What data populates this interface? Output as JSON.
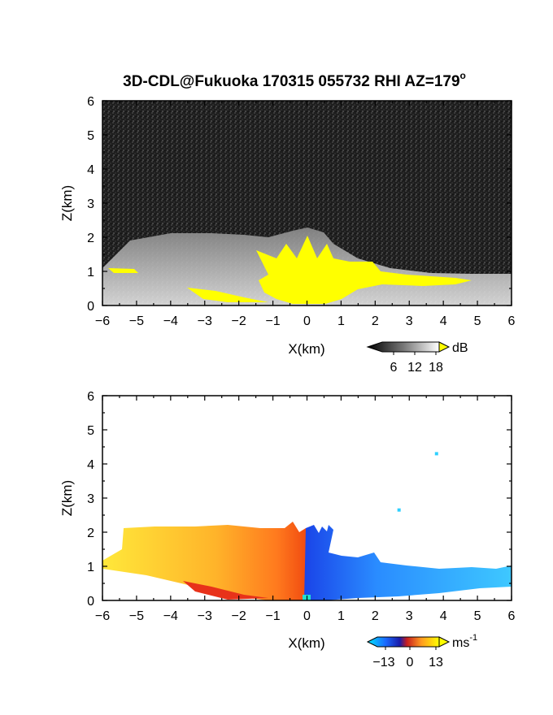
{
  "chart_data": [
    {
      "type": "heatmap",
      "title": "3D-CDL@Fukuoka 170315 055732 RHI AZ=179",
      "title_superscript": "o",
      "xlabel": "X(km)",
      "ylabel": "Z(km)",
      "xlim": [
        -6,
        6
      ],
      "ylim": [
        0,
        6
      ],
      "xticks": [
        "-6",
        "-5",
        "-4",
        "-3",
        "-2",
        "-1",
        "0",
        "1",
        "2",
        "3",
        "4",
        "5",
        "6"
      ],
      "yticks": [
        "0",
        "1",
        "2",
        "3",
        "4",
        "5",
        "6"
      ],
      "colorbar": {
        "unit": "dB",
        "ticks": [
          "6",
          "12",
          "18"
        ],
        "range": [
          0,
          20
        ],
        "colormap": "grayscale-to-white, yellow overflow",
        "overflow_color": "#ffff00"
      },
      "regions": [
        {
          "desc": "aerosol echo fan",
          "z_top_km_at_x": [
            [
              -6,
              1.1
            ],
            [
              -5,
              1.9
            ],
            [
              -3,
              2.1
            ],
            [
              -1,
              2.0
            ],
            [
              0,
              2.2
            ],
            [
              1,
              1.5
            ],
            [
              3,
              0.9
            ],
            [
              6,
              0.9
            ]
          ]
        },
        {
          "desc": "strong echo (>18 dB)",
          "x_range": [
            -1.5,
            2.2
          ],
          "z_range": [
            0,
            1.65
          ]
        }
      ]
    },
    {
      "type": "heatmap",
      "title": "",
      "xlabel": "X(km)",
      "ylabel": "Z(km)",
      "xlim": [
        -6,
        6
      ],
      "ylim": [
        0,
        6
      ],
      "xticks": [
        "-6",
        "-5",
        "-4",
        "-3",
        "-2",
        "-1",
        "0",
        "1",
        "2",
        "3",
        "4",
        "5",
        "6"
      ],
      "yticks": [
        "0",
        "1",
        "2",
        "3",
        "4",
        "5",
        "6"
      ],
      "colorbar": {
        "unit": "ms",
        "unit_superscript": "-1",
        "ticks": [
          "-13",
          "0",
          "13"
        ],
        "range": [
          -16,
          16
        ],
        "colormap": "cyan-blue-red-orange-yellow"
      },
      "regions": [
        {
          "desc": "receding wind (positive, warm colors)",
          "x_range": [
            -6,
            0.1
          ],
          "z_range": [
            0,
            2.3
          ]
        },
        {
          "desc": "approaching wind (negative, blue colors)",
          "x_range": [
            0,
            6
          ],
          "z_range": [
            0,
            2.0
          ]
        },
        {
          "desc": "isolated returns",
          "points": [
            [
              3.8,
              4.3
            ],
            [
              2.7,
              2.65
            ]
          ]
        }
      ]
    }
  ]
}
